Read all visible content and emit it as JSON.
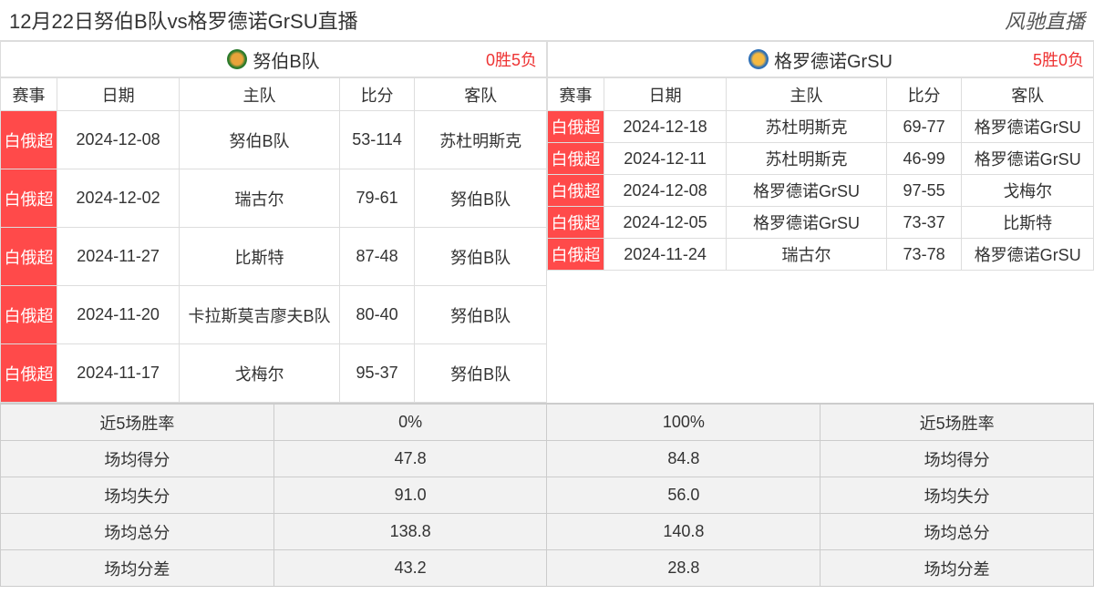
{
  "header": {
    "title": "12月22日努伯B队vs格罗德诺GrSU直播",
    "site": "风驰直播"
  },
  "columns": {
    "league": "赛事",
    "date": "日期",
    "home": "主队",
    "score": "比分",
    "away": "客队"
  },
  "teamA": {
    "name": "努伯B队",
    "record": "0胜5负",
    "matches": [
      {
        "league": "白俄超",
        "date": "2024-12-08",
        "home": "努伯B队",
        "score": "53-114",
        "away": "苏杜明斯克"
      },
      {
        "league": "白俄超",
        "date": "2024-12-02",
        "home": "瑞古尔",
        "score": "79-61",
        "away": "努伯B队"
      },
      {
        "league": "白俄超",
        "date": "2024-11-27",
        "home": "比斯特",
        "score": "87-48",
        "away": "努伯B队"
      },
      {
        "league": "白俄超",
        "date": "2024-11-20",
        "home": "卡拉斯莫吉廖夫B队",
        "score": "80-40",
        "away": "努伯B队"
      },
      {
        "league": "白俄超",
        "date": "2024-11-17",
        "home": "戈梅尔",
        "score": "95-37",
        "away": "努伯B队"
      }
    ]
  },
  "teamB": {
    "name": "格罗德诺GrSU",
    "record": "5胜0负",
    "matches": [
      {
        "league": "白俄超",
        "date": "2024-12-18",
        "home": "苏杜明斯克",
        "score": "69-77",
        "away": "格罗德诺GrSU"
      },
      {
        "league": "白俄超",
        "date": "2024-12-11",
        "home": "苏杜明斯克",
        "score": "46-99",
        "away": "格罗德诺GrSU"
      },
      {
        "league": "白俄超",
        "date": "2024-12-08",
        "home": "格罗德诺GrSU",
        "score": "97-55",
        "away": "戈梅尔"
      },
      {
        "league": "白俄超",
        "date": "2024-12-05",
        "home": "格罗德诺GrSU",
        "score": "73-37",
        "away": "比斯特"
      },
      {
        "league": "白俄超",
        "date": "2024-11-24",
        "home": "瑞古尔",
        "score": "73-78",
        "away": "格罗德诺GrSU"
      }
    ]
  },
  "stats": {
    "labels": {
      "winrate": "近5场胜率",
      "ppg": "场均得分",
      "papg": "场均失分",
      "total": "场均总分",
      "diff": "场均分差"
    },
    "teamA": {
      "winrate": "0%",
      "ppg": "47.8",
      "papg": "91.0",
      "total": "138.8",
      "diff": "43.2"
    },
    "teamB": {
      "winrate": "100%",
      "ppg": "84.8",
      "papg": "56.0",
      "total": "140.8",
      "diff": "28.8"
    }
  },
  "style": {
    "league_bg": "#ff4a4a",
    "league_fg": "#ffffff",
    "stats_bg": "#f2f2f2",
    "border": "#dddddd",
    "record_color": "#ee3333",
    "font_base": 18,
    "font_header": 22
  }
}
